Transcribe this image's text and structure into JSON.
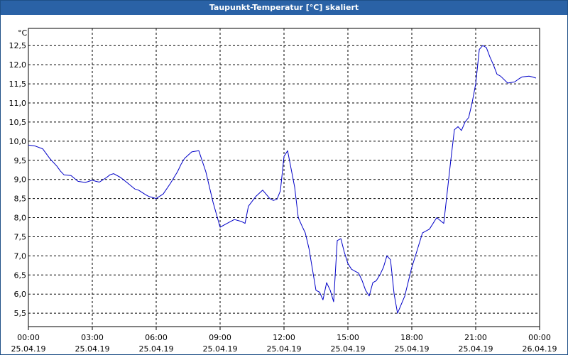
{
  "window": {
    "title": "Taupunkt-Temperatur [°C] skaliert"
  },
  "chart_data": {
    "type": "line",
    "title": "Taupunkt-Temperatur [°C] skaliert",
    "ylabel": "°C",
    "xlabel": "",
    "ylim": [
      5.15,
      12.95
    ],
    "xlim": [
      0,
      24
    ],
    "y_ticks": [
      "12,5",
      "12,0",
      "11,5",
      "11,0",
      "10,5",
      "10,0",
      "9,5",
      "9,0",
      "8,5",
      "8,0",
      "7,5",
      "7,0",
      "6,5",
      "6,0",
      "5,5"
    ],
    "y_tick_values": [
      12.5,
      12.0,
      11.5,
      11.0,
      10.5,
      10.0,
      9.5,
      9.0,
      8.5,
      8.0,
      7.5,
      7.0,
      6.5,
      6.0,
      5.5
    ],
    "x_ticks": [
      {
        "time": "00:00",
        "date": "25.04.19",
        "hour": 0
      },
      {
        "time": "03:00",
        "date": "25.04.19",
        "hour": 3
      },
      {
        "time": "06:00",
        "date": "25.04.19",
        "hour": 6
      },
      {
        "time": "09:00",
        "date": "25.04.19",
        "hour": 9
      },
      {
        "time": "12:00",
        "date": "25.04.19",
        "hour": 12
      },
      {
        "time": "15:00",
        "date": "25.04.19",
        "hour": 15
      },
      {
        "time": "18:00",
        "date": "25.04.19",
        "hour": 18
      },
      {
        "time": "21:00",
        "date": "25.04.19",
        "hour": 21
      },
      {
        "time": "00:00",
        "date": "26.04.19",
        "hour": 24
      }
    ],
    "grid": true,
    "series": [
      {
        "name": "",
        "color": "#0000c8",
        "x": [
          0,
          0.33,
          0.67,
          1.0,
          1.33,
          1.5,
          1.67,
          2.0,
          2.33,
          2.67,
          3.0,
          3.17,
          3.33,
          3.67,
          3.83,
          4.0,
          4.33,
          4.67,
          5.0,
          5.17,
          5.5,
          5.67,
          6.0,
          6.33,
          6.67,
          7.0,
          7.17,
          7.33,
          7.67,
          8.0,
          8.33,
          8.67,
          9.0,
          9.33,
          9.67,
          10.0,
          10.17,
          10.33,
          10.67,
          11.0,
          11.33,
          11.5,
          11.67,
          11.83,
          12.0,
          12.17,
          12.5,
          12.67,
          12.83,
          13.0,
          13.17,
          13.5,
          13.67,
          13.83,
          14.0,
          14.17,
          14.33,
          14.5,
          14.67,
          14.83,
          15.0,
          15.17,
          15.33,
          15.5,
          15.67,
          15.83,
          16.0,
          16.17,
          16.33,
          16.5,
          16.67,
          16.83,
          17.0,
          17.17,
          17.33,
          17.67,
          18.0,
          18.17,
          18.5,
          18.83,
          19.17,
          19.5,
          19.83,
          20.0,
          20.17,
          20.33,
          20.5,
          20.67,
          20.83,
          21.0,
          21.17,
          21.33,
          21.5,
          21.67,
          21.83,
          22.0,
          22.17,
          22.5,
          22.83,
          23.0,
          23.17,
          23.5,
          23.67,
          23.83
        ],
        "values": [
          9.9,
          9.87,
          9.8,
          9.55,
          9.35,
          9.22,
          9.12,
          9.1,
          8.95,
          8.92,
          8.98,
          8.95,
          8.93,
          9.05,
          9.12,
          9.15,
          9.05,
          8.9,
          8.75,
          8.72,
          8.6,
          8.55,
          8.5,
          8.62,
          8.9,
          9.2,
          9.4,
          9.55,
          9.72,
          9.75,
          9.2,
          8.4,
          7.75,
          7.85,
          7.95,
          7.9,
          7.85,
          8.3,
          8.55,
          8.72,
          8.5,
          8.45,
          8.48,
          8.7,
          9.6,
          9.75,
          8.8,
          8.0,
          7.8,
          7.6,
          7.2,
          6.1,
          6.05,
          5.85,
          6.3,
          6.1,
          5.8,
          7.4,
          7.45,
          7.1,
          6.8,
          6.65,
          6.6,
          6.55,
          6.35,
          6.1,
          5.95,
          6.3,
          6.35,
          6.5,
          6.7,
          7.0,
          6.9,
          6.0,
          5.5,
          5.95,
          6.7,
          7.0,
          7.6,
          7.7,
          8.0,
          7.85,
          9.5,
          10.3,
          10.38,
          10.28,
          10.5,
          10.62,
          11.0,
          11.5,
          12.4,
          12.5,
          12.45,
          12.2,
          12.0,
          11.75,
          11.7,
          11.52,
          11.55,
          11.62,
          11.68,
          11.7,
          11.68,
          11.65
        ]
      }
    ]
  }
}
